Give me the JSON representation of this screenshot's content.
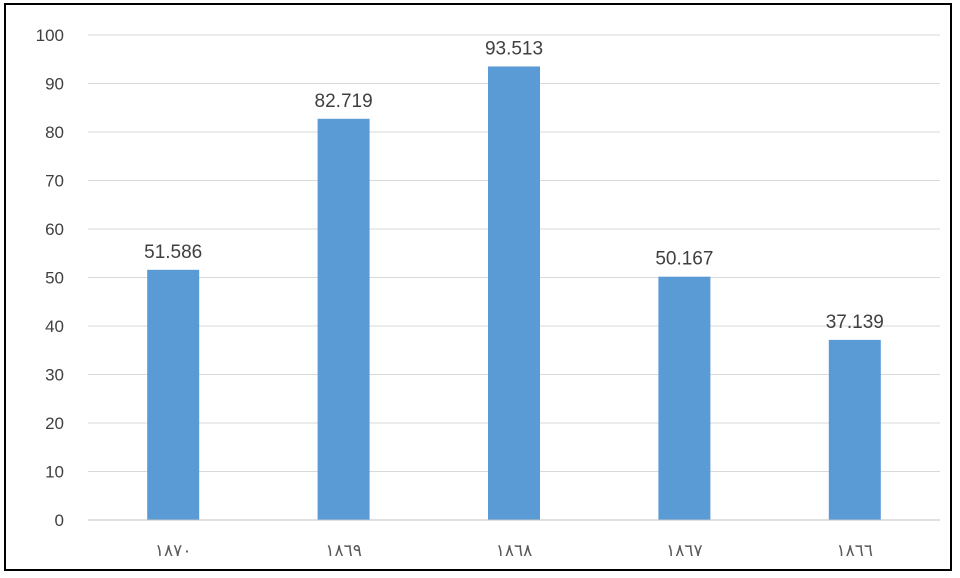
{
  "chart_data": {
    "type": "bar",
    "categories": [
      "١٨٧٠",
      "١٨٦٩",
      "١٨٦٨",
      "١٨٦٧",
      "١٨٦٦"
    ],
    "values": [
      51.586,
      82.719,
      93.513,
      50.167,
      37.139
    ],
    "value_labels": [
      "51.586",
      "82.719",
      "93.513",
      "50.167",
      "37.139"
    ],
    "title": "",
    "xlabel": "",
    "ylabel": "",
    "ylim": [
      0,
      100
    ],
    "yticks": [
      0,
      10,
      20,
      30,
      40,
      50,
      60,
      70,
      80,
      90,
      100
    ],
    "grid": true,
    "legend": "none",
    "colors": {
      "bar": "#5b9bd5",
      "grid": "#d9d9d9",
      "axis": "#bfbfbf"
    }
  }
}
